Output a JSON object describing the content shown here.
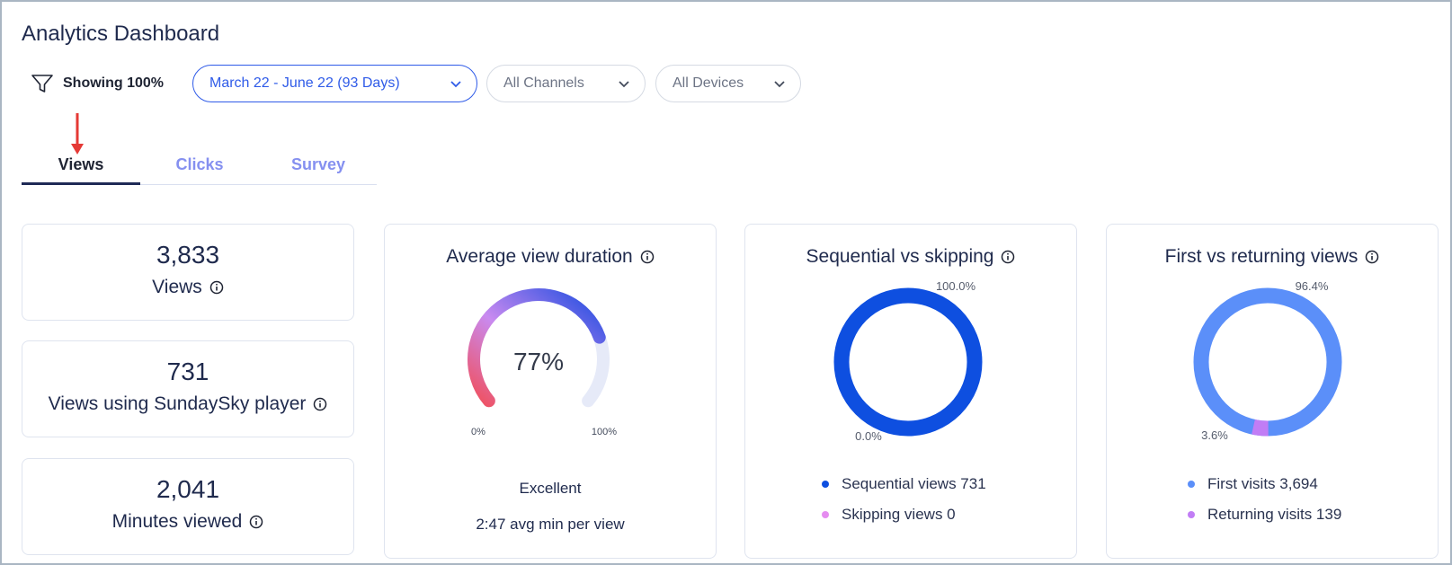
{
  "page": {
    "title": "Analytics Dashboard"
  },
  "filters": {
    "showing_label": "Showing 100%",
    "date_range": "March 22 - June 22 (93 Days)",
    "channels": "All Channels",
    "devices": "All Devices"
  },
  "tabs": [
    {
      "label": "Views",
      "active": true
    },
    {
      "label": "Clicks",
      "active": false
    },
    {
      "label": "Survey",
      "active": false
    }
  ],
  "stats": [
    {
      "value": "3,833",
      "label": "Views"
    },
    {
      "value": "731",
      "label": "Views using SundaySky player"
    },
    {
      "value": "2,041",
      "label": "Minutes viewed"
    }
  ],
  "avg_duration": {
    "title": "Average view duration",
    "percent": 77,
    "percent_label": "77%",
    "min_label": "0%",
    "max_label": "100%",
    "rating": "Excellent",
    "avg_text": "2:47 avg min per view"
  },
  "sequential": {
    "title": "Sequential vs skipping",
    "top_label": "100.0%",
    "bottom_label": "0.0%",
    "legend": [
      {
        "label": "Sequential views 731",
        "color": "#0e4fe0"
      },
      {
        "label": "Skipping views 0",
        "color": "#e58cf0"
      }
    ]
  },
  "first_returning": {
    "title": "First vs returning views",
    "top_label": "96.4%",
    "bottom_label": "3.6%",
    "legend": [
      {
        "label": "First visits 3,694",
        "color": "#5b8ff9"
      },
      {
        "label": "Returning visits 139",
        "color": "#c17df5"
      }
    ]
  },
  "colors": {
    "accent": "#2f5be8",
    "tab_inactive": "#8590f0",
    "arrow": "#e53935"
  }
}
